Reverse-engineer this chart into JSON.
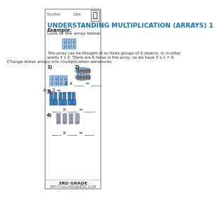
{
  "title": "UNDERSTANDING MULTIPLICATION (ARRAYS) 1",
  "bg_color": "#ffffff",
  "title_color": "#1a6fba",
  "border_color": "#cccccc",
  "label_number": "Number",
  "label_date": "Date",
  "example_label": "Example:",
  "look_text": "Look at the array below.",
  "desc_text": "This array can be thought of as three groups of 2 objects, or in other\nwords 3 x 2. There are 6 faces in the array, so we have 3 x 2 = 6.",
  "change_text": "Change these arrays into multiplication sentences.",
  "q1_label": "1)",
  "q1_eq": "4 x 2 = ____",
  "q2_label": "2)",
  "q2_eq": "2 x ____ = ____",
  "q3_label": "3)",
  "q3_eq": "____ x ____ = ____",
  "q4_label": "4)",
  "q4_eq": "____ x ____ = ____",
  "footer_text": "3RD GRADE",
  "footer_url": "MATH-SALAMANDERS.COM",
  "smiley_color": "#e8e8e8",
  "smiley_border": "#4a90d9",
  "sock_color": "#3a7fbf",
  "clock_color": "#d0d0d0",
  "pencil_color": "#c8c8c8"
}
